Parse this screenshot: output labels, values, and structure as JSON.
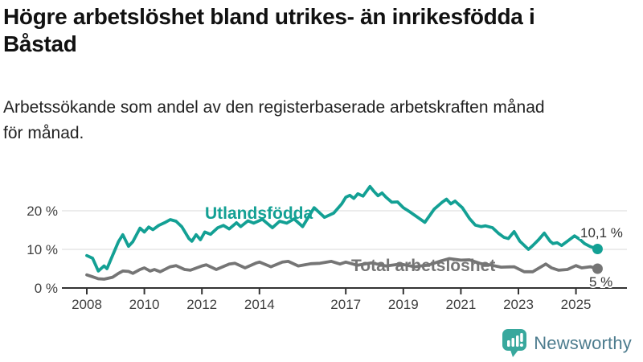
{
  "header": {
    "title": "Högre arbetslöshet bland utrikes- än inrikesfödda i\nBåstad",
    "subtitle": "Arbetssökande som andel av den registerbaserade arbetskraften månad\nför månad."
  },
  "logo": {
    "brand": "Newsworthy",
    "icon": "newsworthy-speech-bubble-bar-chart-icon",
    "icon_color": "#38a89d",
    "text_color": "#4d7c8e"
  },
  "chart_data": {
    "type": "line",
    "title": "Högre arbetslöshet bland utrikes- än inrikesfödda i Båstad",
    "subtitle": "Arbetssökande som andel av den registerbaserade arbetskraften månad för månad.",
    "xlabel": "",
    "ylabel": "",
    "xlim": [
      2007.2,
      2026.3
    ],
    "ylim": [
      0,
      28
    ],
    "grid": "horizontal",
    "legend_position": "inline-labels",
    "x_ticks": [
      2008,
      2010,
      2012,
      2014,
      2017,
      2019,
      2021,
      2023,
      2025
    ],
    "x_tick_labels": [
      "2008",
      "2010",
      "2012",
      "2014",
      "2017",
      "2019",
      "2021",
      "2023",
      "2025"
    ],
    "y_ticks": [
      0,
      10,
      20
    ],
    "y_tick_labels": [
      "0 %",
      "10 %",
      "20 %"
    ],
    "colors": {
      "grid": "#d9d9d9",
      "axis": "#333333",
      "tick_text": "#404040",
      "annotation_text": "#333333"
    },
    "series": [
      {
        "name": "Utlandsfödda",
        "color": "#13a094",
        "end_label": "10,1 %",
        "last_value": 10.1,
        "points": [
          [
            2008.0,
            8.4
          ],
          [
            2008.2,
            7.7
          ],
          [
            2008.4,
            4.4
          ],
          [
            2008.6,
            5.7
          ],
          [
            2008.7,
            5.0
          ],
          [
            2008.9,
            8.5
          ],
          [
            2009.1,
            12.0
          ],
          [
            2009.25,
            13.8
          ],
          [
            2009.45,
            10.8
          ],
          [
            2009.6,
            12.0
          ],
          [
            2009.85,
            15.5
          ],
          [
            2010.0,
            14.5
          ],
          [
            2010.15,
            15.8
          ],
          [
            2010.3,
            15.1
          ],
          [
            2010.5,
            16.2
          ],
          [
            2010.7,
            16.9
          ],
          [
            2010.9,
            17.7
          ],
          [
            2011.1,
            17.3
          ],
          [
            2011.3,
            15.9
          ],
          [
            2011.55,
            12.8
          ],
          [
            2011.65,
            12.1
          ],
          [
            2011.8,
            13.8
          ],
          [
            2011.95,
            12.5
          ],
          [
            2012.1,
            14.5
          ],
          [
            2012.3,
            13.9
          ],
          [
            2012.55,
            15.6
          ],
          [
            2012.75,
            16.2
          ],
          [
            2012.95,
            15.3
          ],
          [
            2013.2,
            16.9
          ],
          [
            2013.35,
            15.9
          ],
          [
            2013.6,
            17.4
          ],
          [
            2013.8,
            16.8
          ],
          [
            2014.1,
            17.8
          ],
          [
            2014.45,
            15.6
          ],
          [
            2014.7,
            17.3
          ],
          [
            2014.95,
            16.8
          ],
          [
            2015.2,
            17.9
          ],
          [
            2015.5,
            15.9
          ],
          [
            2015.9,
            20.8
          ],
          [
            2016.1,
            19.4
          ],
          [
            2016.26,
            18.3
          ],
          [
            2016.58,
            19.4
          ],
          [
            2016.86,
            21.8
          ],
          [
            2017.0,
            23.5
          ],
          [
            2017.14,
            24.0
          ],
          [
            2017.28,
            23.2
          ],
          [
            2017.42,
            24.4
          ],
          [
            2017.6,
            23.8
          ],
          [
            2017.84,
            26.3
          ],
          [
            2017.98,
            25.0
          ],
          [
            2018.12,
            23.9
          ],
          [
            2018.26,
            24.6
          ],
          [
            2018.4,
            23.5
          ],
          [
            2018.6,
            22.2
          ],
          [
            2018.8,
            22.3
          ],
          [
            2019.0,
            20.8
          ],
          [
            2019.23,
            19.7
          ],
          [
            2019.5,
            18.3
          ],
          [
            2019.75,
            17.0
          ],
          [
            2020.07,
            20.4
          ],
          [
            2020.35,
            22.2
          ],
          [
            2020.5,
            23.0
          ],
          [
            2020.65,
            21.8
          ],
          [
            2020.8,
            22.5
          ],
          [
            2021.05,
            20.8
          ],
          [
            2021.3,
            18.0
          ],
          [
            2021.5,
            16.3
          ],
          [
            2021.7,
            15.9
          ],
          [
            2021.85,
            16.1
          ],
          [
            2022.1,
            15.6
          ],
          [
            2022.3,
            14.2
          ],
          [
            2022.5,
            13.1
          ],
          [
            2022.65,
            12.8
          ],
          [
            2022.85,
            14.6
          ],
          [
            2023.05,
            12.1
          ],
          [
            2023.35,
            10.0
          ],
          [
            2023.5,
            11.0
          ],
          [
            2023.7,
            12.5
          ],
          [
            2023.9,
            14.2
          ],
          [
            2024.1,
            12.1
          ],
          [
            2024.2,
            11.5
          ],
          [
            2024.35,
            11.7
          ],
          [
            2024.5,
            11.0
          ],
          [
            2024.7,
            12.1
          ],
          [
            2024.95,
            13.5
          ],
          [
            2025.15,
            12.5
          ],
          [
            2025.3,
            11.5
          ],
          [
            2025.5,
            10.7
          ],
          [
            2025.75,
            10.1
          ]
        ]
      },
      {
        "name": "Total arbetslöshet",
        "color": "#757575",
        "end_label": "5 %",
        "last_value": 5.0,
        "points": [
          [
            2008.0,
            3.4
          ],
          [
            2008.2,
            2.9
          ],
          [
            2008.4,
            2.4
          ],
          [
            2008.6,
            2.3
          ],
          [
            2008.9,
            2.8
          ],
          [
            2009.1,
            3.8
          ],
          [
            2009.25,
            4.4
          ],
          [
            2009.45,
            4.3
          ],
          [
            2009.6,
            3.8
          ],
          [
            2009.85,
            4.8
          ],
          [
            2010.0,
            5.2
          ],
          [
            2010.2,
            4.4
          ],
          [
            2010.35,
            4.8
          ],
          [
            2010.55,
            4.2
          ],
          [
            2010.9,
            5.5
          ],
          [
            2011.1,
            5.8
          ],
          [
            2011.4,
            4.8
          ],
          [
            2011.6,
            4.6
          ],
          [
            2012.0,
            5.7
          ],
          [
            2012.15,
            6.0
          ],
          [
            2012.5,
            4.8
          ],
          [
            2012.95,
            6.2
          ],
          [
            2013.15,
            6.4
          ],
          [
            2013.5,
            5.2
          ],
          [
            2013.9,
            6.5
          ],
          [
            2014.0,
            6.7
          ],
          [
            2014.4,
            5.5
          ],
          [
            2014.8,
            6.7
          ],
          [
            2015.0,
            6.9
          ],
          [
            2015.35,
            5.7
          ],
          [
            2015.8,
            6.3
          ],
          [
            2016.1,
            6.4
          ],
          [
            2016.5,
            6.9
          ],
          [
            2016.8,
            6.2
          ],
          [
            2017.0,
            6.7
          ],
          [
            2017.4,
            5.9
          ],
          [
            2017.9,
            6.5
          ],
          [
            2018.4,
            5.7
          ],
          [
            2018.9,
            6.2
          ],
          [
            2019.4,
            5.5
          ],
          [
            2019.9,
            6.0
          ],
          [
            2020.3,
            7.0
          ],
          [
            2020.6,
            7.6
          ],
          [
            2021.0,
            7.2
          ],
          [
            2021.3,
            7.3
          ],
          [
            2021.7,
            6.3
          ],
          [
            2022.0,
            6.0
          ],
          [
            2022.4,
            5.4
          ],
          [
            2022.85,
            5.5
          ],
          [
            2023.2,
            4.2
          ],
          [
            2023.5,
            4.2
          ],
          [
            2023.95,
            6.2
          ],
          [
            2024.15,
            5.2
          ],
          [
            2024.4,
            4.6
          ],
          [
            2024.7,
            4.8
          ],
          [
            2025.0,
            5.8
          ],
          [
            2025.2,
            5.2
          ],
          [
            2025.5,
            5.5
          ],
          [
            2025.75,
            5.0
          ]
        ]
      }
    ]
  }
}
